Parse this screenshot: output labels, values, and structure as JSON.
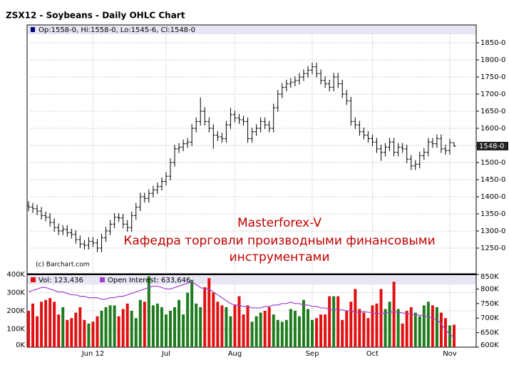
{
  "chart_data": [
    {
      "type": "ohlc",
      "title": "ZSX12 - Soybeans - Daily OHLC Chart",
      "header": "Op:1558-0, Hi:1558-0, Lo:1545-6, Cl:1548-0",
      "last_label": "1548-0",
      "copyright": "(c) Barchart.com",
      "watermark": [
        "Masterforex-V",
        "Кафедра торговли производными финансовыми",
        "инструментами"
      ],
      "color": "#000000",
      "grid": true,
      "ylim": [
        1175,
        1875
      ],
      "yticks": [
        {
          "value": 1250,
          "label": "1250-0"
        },
        {
          "value": 1300,
          "label": "1300-0"
        },
        {
          "value": 1350,
          "label": "1350-0"
        },
        {
          "value": 1400,
          "label": "1400-0"
        },
        {
          "value": 1450,
          "label": "1450-0"
        },
        {
          "value": 1500,
          "label": "1500-0"
        },
        {
          "value": 1550,
          "label": "1550-0"
        },
        {
          "value": 1600,
          "label": "1600-0"
        },
        {
          "value": 1650,
          "label": "1650-0"
        },
        {
          "value": 1700,
          "label": "1700-0"
        },
        {
          "value": 1750,
          "label": "1750-0"
        },
        {
          "value": 1800,
          "label": "1800-0"
        },
        {
          "value": 1850,
          "label": "1850-0"
        }
      ],
      "open": [
        1375,
        1370,
        1365,
        1358,
        1345,
        1340,
        1325,
        1310,
        1300,
        1305,
        1295,
        1290,
        1275,
        1262,
        1258,
        1270,
        1265,
        1250,
        1280,
        1300,
        1320,
        1340,
        1338,
        1320,
        1310,
        1345,
        1370,
        1400,
        1395,
        1410,
        1420,
        1430,
        1445,
        1460,
        1500,
        1540,
        1545,
        1555,
        1560,
        1600,
        1620,
        1650,
        1620,
        1600,
        1580,
        1575,
        1570,
        1610,
        1640,
        1630,
        1625,
        1620,
        1570,
        1590,
        1600,
        1620,
        1610,
        1600,
        1660,
        1700,
        1720,
        1730,
        1735,
        1740,
        1750,
        1760,
        1770,
        1780,
        1760,
        1740,
        1730,
        1720,
        1750,
        1730,
        1700,
        1680,
        1620,
        1610,
        1590,
        1580,
        1570,
        1560,
        1540,
        1530,
        1545,
        1560,
        1530,
        1545,
        1540,
        1510,
        1490,
        1495,
        1520,
        1530,
        1560,
        1555,
        1570,
        1540,
        1535,
        1558
      ],
      "high": [
        1387,
        1382,
        1377,
        1370,
        1357,
        1352,
        1337,
        1322,
        1317,
        1317,
        1307,
        1302,
        1287,
        1274,
        1282,
        1282,
        1277,
        1292,
        1312,
        1332,
        1352,
        1352,
        1350,
        1332,
        1357,
        1382,
        1412,
        1412,
        1422,
        1432,
        1442,
        1457,
        1472,
        1512,
        1552,
        1557,
        1567,
        1572,
        1612,
        1632,
        1690,
        1662,
        1632,
        1612,
        1592,
        1587,
        1622,
        1660,
        1652,
        1642,
        1637,
        1632,
        1602,
        1612,
        1632,
        1632,
        1622,
        1672,
        1712,
        1732,
        1742,
        1747,
        1752,
        1762,
        1772,
        1782,
        1792,
        1792,
        1772,
        1752,
        1742,
        1762,
        1762,
        1742,
        1712,
        1692,
        1632,
        1622,
        1602,
        1592,
        1582,
        1572,
        1552,
        1557,
        1572,
        1572,
        1557,
        1557,
        1552,
        1522,
        1507,
        1532,
        1542,
        1572,
        1572,
        1582,
        1582,
        1552,
        1570,
        1558
      ],
      "low": [
        1358,
        1353,
        1346,
        1333,
        1328,
        1313,
        1298,
        1288,
        1288,
        1283,
        1278,
        1263,
        1250,
        1246,
        1246,
        1253,
        1238,
        1238,
        1268,
        1288,
        1308,
        1326,
        1308,
        1298,
        1298,
        1333,
        1358,
        1383,
        1383,
        1398,
        1408,
        1418,
        1433,
        1448,
        1488,
        1528,
        1533,
        1543,
        1548,
        1588,
        1608,
        1608,
        1588,
        1540,
        1563,
        1558,
        1558,
        1598,
        1618,
        1613,
        1608,
        1558,
        1558,
        1578,
        1588,
        1598,
        1588,
        1588,
        1648,
        1688,
        1708,
        1718,
        1723,
        1728,
        1738,
        1748,
        1758,
        1748,
        1728,
        1718,
        1708,
        1708,
        1718,
        1688,
        1668,
        1608,
        1598,
        1578,
        1568,
        1558,
        1548,
        1528,
        1505,
        1518,
        1533,
        1518,
        1518,
        1528,
        1498,
        1478,
        1478,
        1483,
        1508,
        1518,
        1543,
        1543,
        1528,
        1523,
        1523,
        1545.75
      ],
      "close": [
        1370,
        1365,
        1358,
        1345,
        1340,
        1325,
        1310,
        1300,
        1305,
        1295,
        1290,
        1275,
        1262,
        1258,
        1270,
        1265,
        1250,
        1280,
        1300,
        1320,
        1340,
        1338,
        1320,
        1310,
        1345,
        1370,
        1400,
        1395,
        1410,
        1420,
        1430,
        1445,
        1460,
        1500,
        1540,
        1545,
        1555,
        1560,
        1600,
        1620,
        1650,
        1620,
        1600,
        1580,
        1575,
        1570,
        1610,
        1640,
        1630,
        1625,
        1620,
        1570,
        1590,
        1600,
        1620,
        1610,
        1600,
        1660,
        1700,
        1720,
        1730,
        1735,
        1740,
        1750,
        1760,
        1770,
        1780,
        1760,
        1740,
        1730,
        1720,
        1750,
        1730,
        1700,
        1680,
        1620,
        1610,
        1590,
        1580,
        1570,
        1560,
        1540,
        1530,
        1545,
        1560,
        1530,
        1545,
        1540,
        1510,
        1490,
        1495,
        1520,
        1530,
        1560,
        1555,
        1570,
        1540,
        1535,
        1558,
        1548
      ]
    },
    {
      "type": "bar",
      "categories": [
        null,
        null,
        null,
        null,
        null,
        null,
        null,
        null,
        null,
        null,
        null,
        null,
        null,
        null,
        null,
        "Jun 12",
        null,
        null,
        null,
        null,
        null,
        null,
        null,
        null,
        null,
        null,
        null,
        null,
        null,
        null,
        null,
        null,
        "Jul",
        null,
        null,
        null,
        null,
        null,
        null,
        null,
        null,
        null,
        null,
        null,
        null,
        null,
        null,
        null,
        "Aug",
        null,
        null,
        null,
        null,
        null,
        null,
        null,
        null,
        null,
        null,
        null,
        null,
        null,
        null,
        null,
        null,
        null,
        "Sep",
        null,
        null,
        null,
        null,
        null,
        null,
        null,
        null,
        null,
        null,
        null,
        null,
        null,
        "Oct",
        null,
        null,
        null,
        null,
        null,
        null,
        null,
        null,
        null,
        null,
        null,
        null,
        null,
        null,
        null,
        null,
        null,
        "Nov",
        null
      ],
      "up_color": "#1e7b1e",
      "down_color": "#e01010",
      "grid": true,
      "ylim": [
        0,
        400000
      ],
      "yticks": [
        {
          "value": 0,
          "label": "0K"
        },
        {
          "value": 100000,
          "label": "100K"
        },
        {
          "value": 200000,
          "label": "200K"
        },
        {
          "value": 300000,
          "label": "300K"
        },
        {
          "value": 400000,
          "label": "400K"
        }
      ],
      "y2lim": [
        600000,
        850000
      ],
      "y2ticks": [
        {
          "value": 600000,
          "label": "600K"
        },
        {
          "value": 650000,
          "label": "650K"
        },
        {
          "value": 700000,
          "label": "700K"
        },
        {
          "value": 750000,
          "label": "750K"
        },
        {
          "value": 800000,
          "label": "800K"
        },
        {
          "value": 850000,
          "label": "850K"
        }
      ],
      "series": [
        {
          "name": "Vol: 123,436",
          "color": "#e01010",
          "values": [
            200000,
            240000,
            170000,
            250000,
            260000,
            270000,
            250000,
            180000,
            220000,
            150000,
            160000,
            190000,
            220000,
            150000,
            130000,
            140000,
            170000,
            200000,
            220000,
            230000,
            230000,
            170000,
            210000,
            240000,
            200000,
            160000,
            260000,
            250000,
            390000,
            230000,
            240000,
            220000,
            180000,
            200000,
            220000,
            260000,
            180000,
            300000,
            370000,
            240000,
            220000,
            330000,
            380000,
            300000,
            250000,
            230000,
            220000,
            170000,
            230000,
            280000,
            180000,
            230000,
            140000,
            170000,
            190000,
            200000,
            220000,
            180000,
            150000,
            140000,
            150000,
            210000,
            200000,
            170000,
            260000,
            210000,
            150000,
            160000,
            180000,
            180000,
            280000,
            280000,
            280000,
            150000,
            200000,
            250000,
            320000,
            210000,
            190000,
            160000,
            230000,
            240000,
            320000,
            210000,
            250000,
            360000,
            210000,
            130000,
            200000,
            220000,
            190000,
            170000,
            230000,
            250000,
            230000,
            220000,
            190000,
            160000,
            120000,
            123436
          ]
        },
        {
          "name": "Open Interest: 633,646",
          "color": "#a040d0",
          "axis": "y2",
          "values": [
            790000,
            795000,
            800000,
            805000,
            805000,
            800000,
            795000,
            790000,
            790000,
            785000,
            780000,
            780000,
            775000,
            775000,
            770000,
            770000,
            770000,
            765000,
            765000,
            770000,
            770000,
            775000,
            775000,
            780000,
            785000,
            790000,
            795000,
            800000,
            805000,
            810000,
            810000,
            805000,
            800000,
            800000,
            805000,
            810000,
            815000,
            820000,
            825000,
            815000,
            805000,
            800000,
            800000,
            790000,
            780000,
            770000,
            760000,
            750000,
            745000,
            745000,
            740000,
            740000,
            735000,
            735000,
            735000,
            740000,
            740000,
            745000,
            745000,
            750000,
            750000,
            755000,
            750000,
            750000,
            745000,
            745000,
            740000,
            740000,
            735000,
            735000,
            730000,
            730000,
            730000,
            728000,
            725000,
            725000,
            720000,
            720000,
            722000,
            720000,
            718000,
            715000,
            715000,
            718000,
            720000,
            722000,
            720000,
            718000,
            715000,
            715000,
            712000,
            710000,
            708000,
            705000,
            700000,
            695000,
            680000,
            660000,
            645000,
            633646
          ]
        }
      ]
    }
  ]
}
